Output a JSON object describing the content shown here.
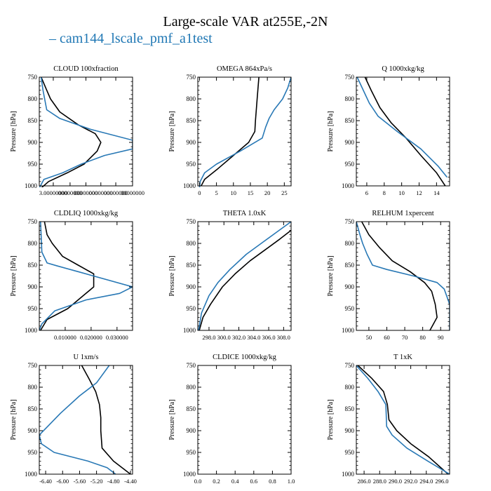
{
  "figure": {
    "title": "Large-scale VAR at255E,-2N",
    "legend_dash": "–",
    "legend_label": "cam144_lscale_pmf_a1test"
  },
  "colors": {
    "model": "#2878b5",
    "obs": "#000000"
  },
  "chart_data": [
    {
      "type": "line",
      "title": "CLOUD  100xfraction",
      "ylabel": "Pressure [hPa]",
      "xlim": [
        0,
        100
      ],
      "xticks": [
        {
          "v": 15,
          "label": "3.00000000"
        },
        {
          "v": 33,
          "label": "00000000"
        },
        {
          "v": 50,
          "label": "00000000"
        },
        {
          "v": 66,
          "label": "00000000"
        },
        {
          "v": 82,
          "label": "00000000"
        },
        {
          "v": 100,
          "label": "00000000"
        }
      ],
      "ylim": [
        750,
        1000
      ],
      "yticks": [
        750,
        800,
        850,
        900,
        950,
        1000
      ],
      "series": [
        {
          "style": "obs",
          "x": [
            2,
            8,
            12,
            22,
            42,
            60,
            66,
            62,
            48,
            30,
            10,
            2
          ],
          "y": [
            750,
            780,
            800,
            830,
            860,
            880,
            900,
            920,
            950,
            970,
            990,
            1005
          ]
        },
        {
          "style": "model",
          "x": [
            2,
            4,
            8,
            22,
            55,
            100,
            100,
            70,
            45,
            25,
            5,
            0
          ],
          "y": [
            750,
            780,
            825,
            845,
            870,
            895,
            915,
            930,
            950,
            970,
            985,
            1005
          ]
        }
      ]
    },
    {
      "type": "line",
      "title": "OMEGA  864xPa/s",
      "ylabel": "Pressure [hPa]",
      "xlim": [
        -0.5,
        27
      ],
      "xticks": [
        {
          "v": 0,
          "label": "0"
        },
        {
          "v": 5,
          "label": "5"
        },
        {
          "v": 10,
          "label": "10"
        },
        {
          "v": 15,
          "label": "15"
        },
        {
          "v": 20,
          "label": "20"
        },
        {
          "v": 25,
          "label": "25"
        }
      ],
      "ylim": [
        750,
        1000
      ],
      "yticks": [
        750,
        800,
        850,
        900,
        950,
        1000
      ],
      "series": [
        {
          "style": "obs",
          "x": [
            17.5,
            17,
            16.5,
            16.3,
            14.5,
            10,
            5.5,
            1.5,
            0.5
          ],
          "y": [
            750,
            800,
            850,
            875,
            900,
            930,
            960,
            985,
            1000
          ]
        },
        {
          "style": "model",
          "x": [
            27,
            26,
            24.5,
            22,
            20.5,
            19.5,
            18.5,
            12,
            5,
            1.5,
            0.2,
            0
          ],
          "y": [
            750,
            775,
            800,
            825,
            845,
            865,
            890,
            920,
            950,
            970,
            990,
            1005
          ]
        }
      ]
    },
    {
      "type": "line",
      "title": "Q  1000xkg/kg",
      "ylabel": "Pressure [hPa]",
      "xlim": [
        4.8,
        15.5
      ],
      "xticks": [
        {
          "v": 6,
          "label": "6"
        },
        {
          "v": 8,
          "label": "8"
        },
        {
          "v": 10,
          "label": "10"
        },
        {
          "v": 12,
          "label": "12"
        },
        {
          "v": 14,
          "label": "14"
        }
      ],
      "ylim": [
        750,
        1000
      ],
      "yticks": [
        750,
        800,
        850,
        900,
        950,
        1000
      ],
      "series": [
        {
          "style": "obs",
          "x": [
            5.8,
            6.5,
            7.5,
            8.8,
            10.5,
            12.2,
            14,
            15
          ],
          "y": [
            750,
            780,
            820,
            855,
            890,
            930,
            970,
            1000
          ]
        },
        {
          "style": "model",
          "x": [
            4.9,
            5.6,
            6.3,
            7.3,
            9.5,
            12.2,
            14.2,
            15.2
          ],
          "y": [
            750,
            780,
            810,
            840,
            875,
            915,
            955,
            980
          ]
        }
      ]
    },
    {
      "type": "line",
      "title": "CLDLIQ  1000xkg/kg",
      "ylabel": "Pressure [hPa]",
      "xlim": [
        0,
        0.036
      ],
      "xticks": [
        {
          "v": 0.01,
          "label": "0.010000"
        },
        {
          "v": 0.02,
          "label": "0.020000"
        },
        {
          "v": 0.03,
          "label": "0.030000"
        }
      ],
      "ylim": [
        750,
        1000
      ],
      "yticks": [
        750,
        800,
        850,
        900,
        950,
        1000
      ],
      "series": [
        {
          "style": "obs",
          "x": [
            0.002,
            0.003,
            0.005,
            0.009,
            0.015,
            0.021,
            0.021,
            0.017,
            0.011,
            0.003,
            0.0005
          ],
          "y": [
            750,
            780,
            800,
            830,
            850,
            870,
            900,
            920,
            950,
            975,
            1000
          ]
        },
        {
          "style": "model",
          "x": [
            0.0005,
            0.001,
            0.003,
            0.007,
            0.015,
            0.036,
            0.031,
            0.018,
            0.006,
            0.001,
            0
          ],
          "y": [
            750,
            820,
            845,
            852,
            865,
            900,
            915,
            930,
            955,
            985,
            1000
          ]
        }
      ]
    },
    {
      "type": "line",
      "title": "THETA  1.0xK",
      "ylabel": "Pressure [hPa]",
      "xlim": [
        296.5,
        309
      ],
      "xticks": [
        {
          "v": 298,
          "label": "298.0"
        },
        {
          "v": 300,
          "label": "300.0"
        },
        {
          "v": 302,
          "label": "302.0"
        },
        {
          "v": 304,
          "label": "304.0"
        },
        {
          "v": 306,
          "label": "306.0"
        },
        {
          "v": 308,
          "label": "308.0"
        }
      ],
      "ylim": [
        750,
        1000
      ],
      "yticks": [
        750,
        800,
        850,
        900,
        950,
        1000
      ],
      "series": [
        {
          "style": "obs",
          "x": [
            309,
            307.5,
            305.5,
            303.5,
            301.5,
            299.8,
            298.2,
            297.2,
            296.7
          ],
          "y": [
            770,
            790,
            815,
            840,
            870,
            900,
            940,
            970,
            1000
          ]
        },
        {
          "style": "model",
          "x": [
            309,
            307,
            305,
            303,
            300.8,
            299.2,
            298,
            297,
            296.6
          ],
          "y": [
            750,
            775,
            800,
            825,
            860,
            890,
            920,
            960,
            1000
          ]
        }
      ]
    },
    {
      "type": "line",
      "title": "RELHUM  1xpercent",
      "ylabel": "Pressure [hPa]",
      "xlim": [
        43,
        95
      ],
      "xticks": [
        {
          "v": 50,
          "label": "50"
        },
        {
          "v": 60,
          "label": "60"
        },
        {
          "v": 70,
          "label": "70"
        },
        {
          "v": 80,
          "label": "80"
        },
        {
          "v": 90,
          "label": "90"
        }
      ],
      "ylim": [
        750,
        1000
      ],
      "yticks": [
        750,
        800,
        850,
        900,
        950,
        1000
      ],
      "series": [
        {
          "style": "obs",
          "x": [
            46,
            50,
            56,
            63,
            73,
            81,
            85,
            87,
            88,
            86,
            84
          ],
          "y": [
            750,
            780,
            810,
            840,
            865,
            890,
            910,
            940,
            970,
            985,
            1000
          ]
        },
        {
          "style": "model",
          "x": [
            43,
            45,
            46.5,
            49,
            52,
            60,
            75,
            88,
            92,
            95,
            95
          ],
          "y": [
            750,
            780,
            800,
            825,
            850,
            860,
            875,
            890,
            905,
            940,
            1000
          ]
        }
      ]
    },
    {
      "type": "line",
      "title": "U  1xm/s",
      "ylabel": "Pressure [hPa]",
      "xlim": [
        -6.55,
        -4.35
      ],
      "xticks": [
        {
          "v": -6.4,
          "label": "-6.40"
        },
        {
          "v": -6.0,
          "label": "-6.00"
        },
        {
          "v": -5.6,
          "label": "-5.60"
        },
        {
          "v": -5.2,
          "label": "-5.20"
        },
        {
          "v": -4.8,
          "label": "-4.80"
        },
        {
          "v": -4.4,
          "label": "-4.40"
        }
      ],
      "ylim": [
        750,
        1000
      ],
      "yticks": [
        750,
        800,
        850,
        900,
        950,
        1000
      ],
      "series": [
        {
          "style": "obs",
          "x": [
            -5.55,
            -5.38,
            -5.22,
            -5.13,
            -5.1,
            -5.1,
            -5.07,
            -4.8,
            -4.4
          ],
          "y": [
            750,
            780,
            810,
            840,
            870,
            900,
            940,
            970,
            1000
          ]
        },
        {
          "style": "model",
          "x": [
            -4.9,
            -5.2,
            -5.6,
            -6.05,
            -6.35,
            -6.55,
            -6.5,
            -6.2,
            -5.4,
            -4.95,
            -4.75
          ],
          "y": [
            750,
            790,
            820,
            860,
            890,
            910,
            930,
            950,
            970,
            985,
            1000
          ]
        }
      ]
    },
    {
      "type": "line",
      "title": "CLDICE  1000xkg/kg",
      "ylabel": "Pressure [hPa]",
      "xlim": [
        0,
        1
      ],
      "xticks": [
        {
          "v": 0,
          "label": "0.0"
        },
        {
          "v": 0.2,
          "label": "0.2"
        },
        {
          "v": 0.4,
          "label": "0.4"
        },
        {
          "v": 0.6,
          "label": "0.6"
        },
        {
          "v": 0.8,
          "label": "0.8"
        },
        {
          "v": 1,
          "label": "1.0"
        }
      ],
      "ylim": [
        750,
        1000
      ],
      "yticks": [
        750,
        800,
        850,
        900,
        950,
        1000
      ],
      "series": []
    },
    {
      "type": "line",
      "title": "T  1xK",
      "ylabel": "Pressure [hPa]",
      "xlim": [
        285,
        297
      ],
      "xticks": [
        {
          "v": 286,
          "label": "286.0"
        },
        {
          "v": 288,
          "label": "288.0"
        },
        {
          "v": 290,
          "label": "290.0"
        },
        {
          "v": 292,
          "label": "292.0"
        },
        {
          "v": 294,
          "label": "294.0"
        },
        {
          "v": 296,
          "label": "296.0"
        }
      ],
      "ylim": [
        750,
        1000
      ],
      "yticks": [
        750,
        800,
        850,
        900,
        950,
        1000
      ],
      "series": [
        {
          "style": "obs",
          "x": [
            285.2,
            287,
            288.5,
            289,
            289.2,
            290.2,
            292,
            294.3,
            296.8
          ],
          "y": [
            750,
            780,
            810,
            840,
            875,
            900,
            930,
            960,
            1000
          ]
        },
        {
          "style": "model",
          "x": [
            285,
            286.5,
            287.8,
            288.8,
            288.9,
            289.6,
            291.5,
            294.2,
            297
          ],
          "y": [
            750,
            780,
            810,
            840,
            890,
            910,
            940,
            970,
            1000
          ]
        }
      ]
    }
  ]
}
